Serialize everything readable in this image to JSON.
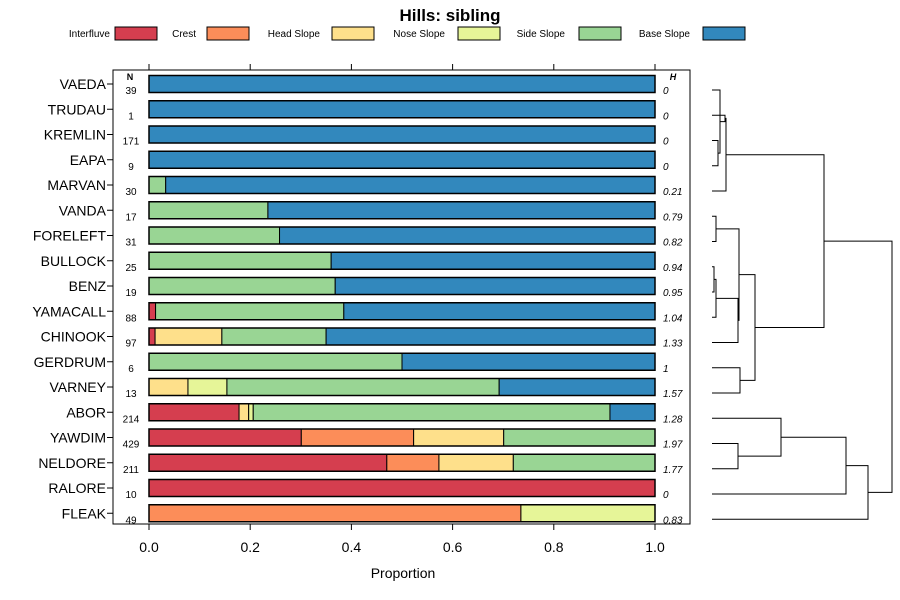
{
  "chart_data": {
    "type": "bar",
    "orientation": "horizontal",
    "stacked": true,
    "title": "Hills: sibling",
    "xlabel": "Proportion",
    "ylabel": "",
    "xlim": [
      0,
      1
    ],
    "x_ticks": [
      "0.0",
      "0.2",
      "0.4",
      "0.6",
      "0.8",
      "1.0"
    ],
    "n_header": "N",
    "h_header": "H",
    "legend_position": "top",
    "series": [
      {
        "name": "Interfluve",
        "color": "#d53e4f"
      },
      {
        "name": "Crest",
        "color": "#fc8d59"
      },
      {
        "name": "Head Slope",
        "color": "#fee08b"
      },
      {
        "name": "Nose Slope",
        "color": "#e6f598"
      },
      {
        "name": "Side Slope",
        "color": "#99d594"
      },
      {
        "name": "Base Slope",
        "color": "#3288bd"
      }
    ],
    "categories": [
      "VAEDA",
      "TRUDAU",
      "KREMLIN",
      "EAPA",
      "MARVAN",
      "VANDA",
      "FORELEFT",
      "BULLOCK",
      "BENZ",
      "YAMACALL",
      "CHINOOK",
      "GERDRUM",
      "VARNEY",
      "ABOR",
      "YAWDIM",
      "NELDORE",
      "RALORE",
      "FLEAK"
    ],
    "n_values": [
      "39",
      "1",
      "171",
      "9",
      "30",
      "17",
      "31",
      "25",
      "19",
      "88",
      "97",
      "6",
      "13",
      "214",
      "429",
      "211",
      "10",
      "49"
    ],
    "h_values": [
      "0",
      "0",
      "0",
      "0",
      "0.21",
      "0.79",
      "0.82",
      "0.94",
      "0.95",
      "1.04",
      "1.33",
      "1",
      "1.57",
      "1.28",
      "1.97",
      "1.77",
      "0",
      "0.83"
    ],
    "proportions": [
      [
        0,
        0,
        0,
        0,
        0,
        1
      ],
      [
        0,
        0,
        0,
        0,
        0,
        1
      ],
      [
        0,
        0,
        0,
        0,
        0,
        1
      ],
      [
        0,
        0,
        0,
        0,
        0,
        1
      ],
      [
        0,
        0,
        0,
        0,
        0.033,
        0.967
      ],
      [
        0,
        0,
        0,
        0,
        0.235,
        0.765
      ],
      [
        0,
        0,
        0,
        0,
        0.258,
        0.742
      ],
      [
        0,
        0,
        0,
        0,
        0.36,
        0.64
      ],
      [
        0,
        0,
        0,
        0,
        0.368,
        0.632
      ],
      [
        0.013,
        0,
        0,
        0,
        0.372,
        0.615
      ],
      [
        0.012,
        0,
        0.132,
        0,
        0.206,
        0.65
      ],
      [
        0,
        0,
        0,
        0,
        0.5,
        0.5
      ],
      [
        0,
        0,
        0.077,
        0.077,
        0.538,
        0.308
      ],
      [
        0.178,
        0,
        0.019,
        0.009,
        0.705,
        0.089
      ],
      [
        0.301,
        0.222,
        0.178,
        0,
        0.299,
        0
      ],
      [
        0.47,
        0.103,
        0.147,
        0,
        0.28,
        0
      ],
      [
        1,
        0,
        0,
        0,
        0,
        0
      ],
      [
        0,
        0.735,
        0,
        0.265,
        0,
        0
      ]
    ]
  }
}
